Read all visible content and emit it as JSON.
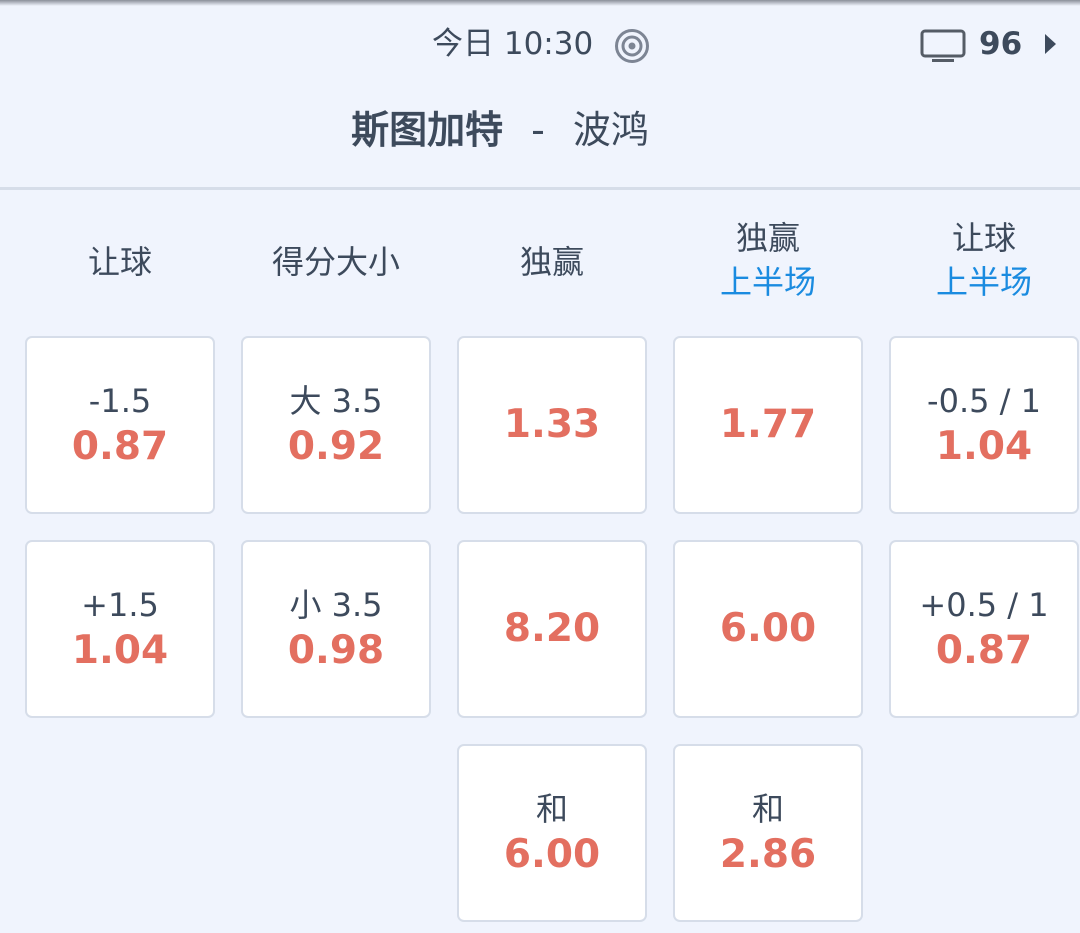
{
  "status": {
    "time": "今日 10:30",
    "icon": "target-icon",
    "tv_icon": "tv-icon",
    "count": "96",
    "arrow_icon": "play-arrow-icon"
  },
  "match": {
    "home": "斯图加特",
    "separator": "-",
    "away": "波鸿"
  },
  "colors": {
    "text": "#3d4a5c",
    "odds": "#e36f60",
    "accent": "#1a8be0",
    "background": "#f0f4fd",
    "border": "#d6dde9"
  },
  "columns": [
    {
      "title": "让球",
      "sub": "",
      "cells": [
        {
          "label": "-1.5",
          "odds": "0.87"
        },
        {
          "label": "+1.5",
          "odds": "1.04"
        }
      ]
    },
    {
      "title": "得分大小",
      "sub": "",
      "cells": [
        {
          "label": "大 3.5",
          "odds": "0.92"
        },
        {
          "label": "小 3.5",
          "odds": "0.98"
        }
      ]
    },
    {
      "title": "独赢",
      "sub": "",
      "cells": [
        {
          "label": "",
          "odds": "1.33"
        },
        {
          "label": "",
          "odds": "8.20"
        },
        {
          "label": "和",
          "odds": "6.00"
        }
      ]
    },
    {
      "title": "独赢",
      "sub": "上半场",
      "cells": [
        {
          "label": "",
          "odds": "1.77"
        },
        {
          "label": "",
          "odds": "6.00"
        },
        {
          "label": "和",
          "odds": "2.86"
        }
      ]
    },
    {
      "title": "让球",
      "sub": "上半场",
      "cells": [
        {
          "label": "-0.5 / 1",
          "odds": "1.04"
        },
        {
          "label": "+0.5 / 1",
          "odds": "0.87"
        }
      ]
    }
  ]
}
